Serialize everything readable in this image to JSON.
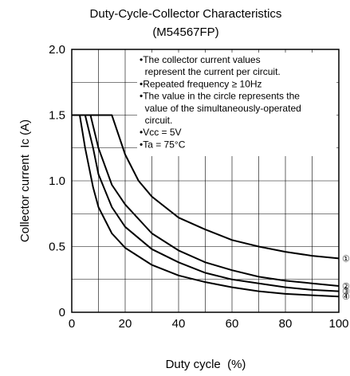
{
  "chart_data": {
    "type": "line",
    "title": "Duty-Cycle-Collector Characteristics",
    "subtitle": "(M54567FP)",
    "xlabel": "Duty cycle  (%)",
    "ylabel": "Collector current  Ic (A)",
    "xlim": [
      0,
      100
    ],
    "ylim": [
      0,
      2.0
    ],
    "x_ticks": [
      "0",
      "20",
      "40",
      "60",
      "80",
      "100"
    ],
    "y_ticks": [
      "0",
      "0.5",
      "1.0",
      "1.5",
      "2.0"
    ],
    "grid": true,
    "annotations": [
      "•The collector current values",
      "  represent the current per circuit.",
      "•Repeated frequency ≥ 10Hz",
      "•The value in the circle represents the",
      "  value of the simultaneously-operated",
      "  circuit.",
      "•Vcc = 5V",
      "•Ta = 75°C"
    ],
    "series": [
      {
        "name": "①",
        "x": [
          0,
          15,
          20,
          25,
          30,
          40,
          50,
          60,
          70,
          80,
          90,
          100
        ],
        "y": [
          1.5,
          1.5,
          1.2,
          1.0,
          0.88,
          0.72,
          0.63,
          0.55,
          0.5,
          0.46,
          0.43,
          0.41
        ]
      },
      {
        "name": "②",
        "x": [
          0,
          7,
          10,
          15,
          20,
          30,
          40,
          50,
          60,
          70,
          80,
          90,
          100
        ],
        "y": [
          1.5,
          1.5,
          1.25,
          0.97,
          0.82,
          0.6,
          0.47,
          0.38,
          0.32,
          0.27,
          0.24,
          0.22,
          0.2
        ]
      },
      {
        "name": "③",
        "x": [
          0,
          5,
          8,
          10,
          15,
          20,
          30,
          40,
          50,
          60,
          70,
          80,
          90,
          100
        ],
        "y": [
          1.5,
          1.5,
          1.25,
          1.05,
          0.8,
          0.65,
          0.48,
          0.38,
          0.3,
          0.25,
          0.22,
          0.19,
          0.17,
          0.16
        ]
      },
      {
        "name": "④",
        "x": [
          0,
          3,
          5,
          8,
          10,
          15,
          20,
          30,
          40,
          50,
          60,
          70,
          80,
          90,
          100
        ],
        "y": [
          1.5,
          1.5,
          1.25,
          0.95,
          0.8,
          0.6,
          0.49,
          0.36,
          0.28,
          0.23,
          0.19,
          0.16,
          0.14,
          0.13,
          0.12
        ]
      }
    ]
  }
}
